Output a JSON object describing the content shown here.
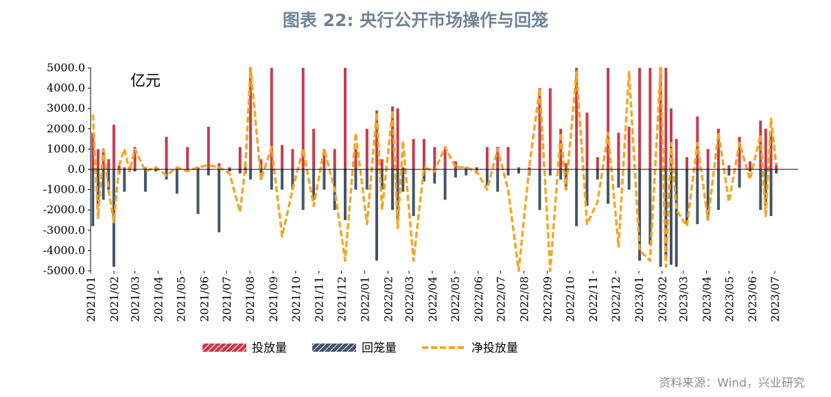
{
  "title": "图表 22: 央行公开市场操作与回笼",
  "source": "资料来源：Wind，兴业研究",
  "colors": {
    "invest": "#c83a4e",
    "withdraw": "#44546a",
    "net": "#f5a623",
    "title": "#6f8397"
  },
  "chart_data": {
    "type": "bar",
    "unit_label": "亿元",
    "ylim": [
      -5000,
      5000
    ],
    "yticks": [
      5000,
      4000,
      3000,
      2000,
      1000,
      0,
      -1000,
      -2000,
      -3000,
      -4000,
      -5000
    ],
    "ytick_labels": [
      "5000.0",
      "4000.0",
      "3000.0",
      "2000.0",
      "1000.0",
      "0.0",
      "-1000.0",
      "-2000.0",
      "-3000.0",
      "-4000.0",
      "-5000.0"
    ],
    "xtick_labels": [
      "2021/01",
      "2021/02",
      "2021/03",
      "2021/04",
      "2021/05",
      "2021/06",
      "2021/07",
      "2021/08",
      "2021/09",
      "2021/10",
      "2021/11",
      "2021/12",
      "2022/01",
      "2022/02",
      "2022/03",
      "2022/04",
      "2022/05",
      "2022/06",
      "2022/07",
      "2022/08",
      "2022/09",
      "2022/10",
      "2022/11",
      "2022/12",
      "2023/01",
      "2023/02",
      "2023/03",
      "2023/04",
      "2023/05",
      "2023/06",
      "2023/07"
    ],
    "legend": [
      {
        "key": "invest",
        "label": "投放量"
      },
      {
        "key": "withdraw",
        "label": "回笼量"
      },
      {
        "key": "net",
        "label": "净投放量"
      }
    ],
    "legend_position": "bottom",
    "grid": false,
    "x": [
      "2021-01-04",
      "2021-01-11",
      "2021-01-18",
      "2021-01-25",
      "2021-02-01",
      "2021-02-08",
      "2021-02-15",
      "2021-02-22",
      "2021-03-01",
      "2021-03-15",
      "2021-03-29",
      "2021-04-12",
      "2021-04-26",
      "2021-05-10",
      "2021-05-24",
      "2021-06-07",
      "2021-06-21",
      "2021-07-05",
      "2021-07-19",
      "2021-07-26",
      "2021-08-02",
      "2021-08-16",
      "2021-08-30",
      "2021-09-13",
      "2021-09-27",
      "2021-10-11",
      "2021-10-25",
      "2021-11-08",
      "2021-11-22",
      "2021-12-06",
      "2021-12-20",
      "2022-01-04",
      "2022-01-17",
      "2022-01-24",
      "2022-02-07",
      "2022-02-14",
      "2022-02-21",
      "2022-03-07",
      "2022-03-21",
      "2022-04-04",
      "2022-04-18",
      "2022-05-02",
      "2022-05-16",
      "2022-05-30",
      "2022-06-13",
      "2022-06-27",
      "2022-07-11",
      "2022-07-25",
      "2022-08-08",
      "2022-08-22",
      "2022-09-05",
      "2022-09-19",
      "2022-09-26",
      "2022-10-10",
      "2022-10-24",
      "2022-11-07",
      "2022-11-21",
      "2022-12-05",
      "2022-12-19",
      "2023-01-02",
      "2023-01-16",
      "2023-01-30",
      "2023-02-06",
      "2023-02-13",
      "2023-02-20",
      "2023-03-06",
      "2023-03-20",
      "2023-04-03",
      "2023-04-17",
      "2023-05-01",
      "2023-05-15",
      "2023-05-29",
      "2023-06-12",
      "2023-06-19",
      "2023-06-26",
      "2023-07-03"
    ],
    "series": [
      {
        "key": "invest",
        "values": [
          1800,
          1000,
          1000,
          500,
          2200,
          200,
          100,
          100,
          1100,
          100,
          100,
          1600,
          100,
          1100,
          100,
          2100,
          300,
          100,
          1100,
          300,
          5000,
          500,
          5000,
          1200,
          1000,
          5000,
          2000,
          1000,
          1000,
          5000,
          1000,
          2000,
          2900,
          500,
          3100,
          3000,
          100,
          1500,
          1500,
          1100,
          1100,
          400,
          100,
          100,
          1100,
          1100,
          1100,
          100,
          100,
          4000,
          4000,
          2000,
          300,
          5000,
          2800,
          600,
          5000,
          1800,
          2100,
          5000,
          5000,
          5000,
          5000,
          3000,
          1500,
          600,
          2600,
          1000,
          2000,
          200,
          1600,
          400,
          2400,
          2000,
          1800,
          300
        ]
      },
      {
        "key": "withdraw",
        "values": [
          -2800,
          -1800,
          -1500,
          -1000,
          -4800,
          -200,
          -1100,
          -100,
          -100,
          -1100,
          -100,
          -500,
          -1200,
          -100,
          -2200,
          -300,
          -3100,
          -100,
          -200,
          -200,
          -500,
          -500,
          -1000,
          -1000,
          -1000,
          -2000,
          -1500,
          -1000,
          -2000,
          -2500,
          -1000,
          -1000,
          -4500,
          -1000,
          -2000,
          -2500,
          -1100,
          -2300,
          -600,
          -700,
          -1500,
          -400,
          -300,
          -200,
          -800,
          -1100,
          -300,
          -200,
          -300,
          -2000,
          -300,
          -500,
          -1000,
          -2800,
          -1800,
          -500,
          -1700,
          -900,
          -1000,
          -4500,
          -3700,
          -4800,
          -4500,
          -4700,
          -4800,
          -2700,
          -2700,
          -2500,
          -2000,
          -300,
          -900,
          -100,
          -2000,
          -1800,
          -2300,
          -200
        ]
      },
      {
        "key": "net",
        "values": [
          2700,
          -2400,
          1000,
          -1000,
          -2600,
          200,
          1000,
          -100,
          1000,
          -100,
          100,
          -300,
          100,
          -100,
          100,
          200,
          100,
          -200,
          -2100,
          100,
          5000,
          -500,
          1100,
          -3300,
          -1000,
          1000,
          -1800,
          1000,
          -1000,
          -4500,
          1800,
          -2700,
          2800,
          -2000,
          2900,
          -2900,
          1400,
          -4500,
          100,
          -100,
          1100,
          100,
          100,
          -100,
          -1000,
          1000,
          -1000,
          -5000,
          100,
          4000,
          -5000,
          1800,
          -1000,
          4800,
          -2700,
          -1600,
          1800,
          -3800,
          4800,
          -4000,
          -4500,
          5000,
          -4800,
          1300,
          -2000,
          -2800,
          1300,
          -2500,
          1800,
          -1600,
          1300,
          -500,
          1700,
          -2300,
          2500,
          200
        ]
      }
    ]
  }
}
